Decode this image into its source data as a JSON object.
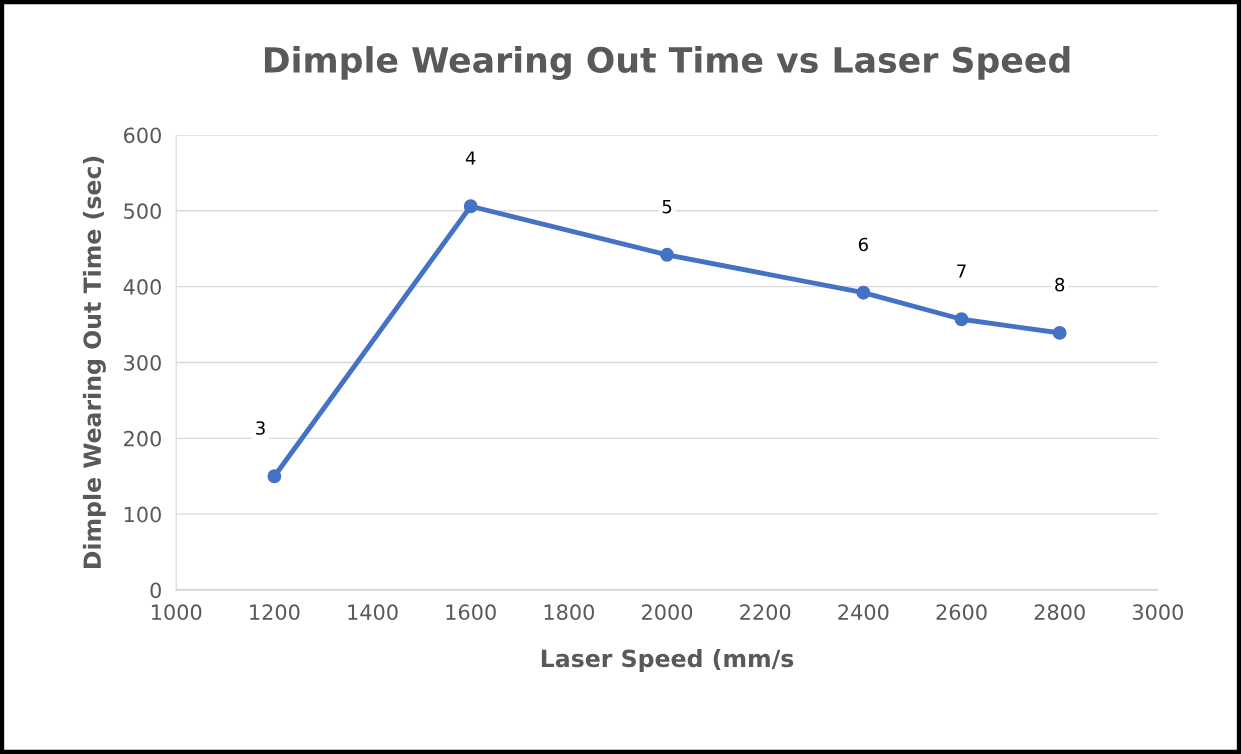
{
  "chart_data": {
    "type": "line",
    "title": "Dimple Wearing Out Time vs Laser Speed",
    "xlabel": "Laser Speed (mm/s",
    "ylabel": "Dimple Wearing Out Time (sec)",
    "x": [
      1200,
      1600,
      2000,
      2400,
      2600,
      2800
    ],
    "series": [
      {
        "color": "#4472c4",
        "values": [
          150,
          506,
          442,
          392,
          357,
          339
        ]
      }
    ],
    "xlim": [
      1000,
      3000
    ],
    "xticks": [
      1000,
      1200,
      1400,
      1600,
      1800,
      2000,
      2200,
      2400,
      2600,
      2800,
      3000
    ],
    "ylim": [
      0,
      600
    ],
    "yticks": [
      0,
      100,
      200,
      300,
      400,
      500,
      600
    ],
    "grid": "y",
    "marker": "circle",
    "line_style": "solid",
    "legend": false,
    "annotations": [
      {
        "text": "3",
        "x": 1200,
        "y": 150
      },
      {
        "text": "4",
        "x": 1600,
        "y": 506
      },
      {
        "text": "5",
        "x": 2000,
        "y": 442
      },
      {
        "text": "6",
        "x": 2400,
        "y": 392
      },
      {
        "text": "7",
        "x": 2600,
        "y": 357
      },
      {
        "text": "8",
        "x": 2800,
        "y": 339
      }
    ]
  }
}
